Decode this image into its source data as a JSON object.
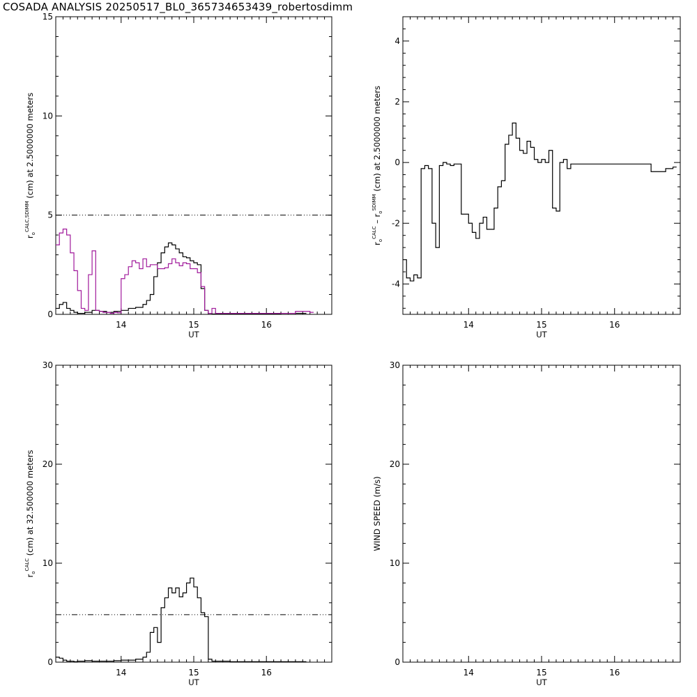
{
  "title": "COSADA ANALYSIS 20250517_BL0_365734653439_robertosdimm",
  "chart_data": [
    {
      "type": "line",
      "xlabel": "UT",
      "ylabel": {
        "base": "r",
        "sub": "o",
        "sup": "CALC,SDIMM",
        "rest": "(cm)  at  2.5000000 meters"
      },
      "xlim": [
        13.1,
        16.9
      ],
      "ylim": [
        0,
        15
      ],
      "xticks": [
        14,
        15,
        16
      ],
      "yticks": [
        0,
        5,
        10,
        15
      ],
      "ref_line": 5,
      "series": [
        {
          "color": "#000000",
          "style": "step",
          "x": [
            13.1,
            13.15,
            13.2,
            13.25,
            13.3,
            13.35,
            13.4,
            13.5,
            13.6,
            13.7,
            13.8,
            13.9,
            14.0,
            14.1,
            14.2,
            14.3,
            14.35,
            14.4,
            14.45,
            14.5,
            14.55,
            14.6,
            14.65,
            14.7,
            14.75,
            14.8,
            14.85,
            14.9,
            14.95,
            15.0,
            15.05,
            15.1,
            15.15,
            15.2,
            15.25,
            15.3,
            15.4,
            15.5,
            15.6,
            15.7,
            15.8,
            15.9,
            16.0,
            16.1,
            16.2,
            16.3,
            16.4,
            16.5
          ],
          "y": [
            0.3,
            0.5,
            0.6,
            0.3,
            0.2,
            0.1,
            0.05,
            0.1,
            0.2,
            0.15,
            0.1,
            0.15,
            0.2,
            0.3,
            0.35,
            0.5,
            0.7,
            1.0,
            1.9,
            2.6,
            3.1,
            3.4,
            3.6,
            3.5,
            3.3,
            3.1,
            2.9,
            2.85,
            2.7,
            2.6,
            2.5,
            1.3,
            0.2,
            0.05,
            0.02,
            0.02,
            0.02,
            0.02,
            0.02,
            0.02,
            0.02,
            0.02,
            0.02,
            0.03,
            0.05,
            0.05,
            0.05,
            0.05
          ]
        },
        {
          "color": "#a0199b",
          "style": "step",
          "x": [
            13.1,
            13.15,
            13.2,
            13.25,
            13.3,
            13.35,
            13.4,
            13.45,
            13.5,
            13.55,
            13.6,
            13.65,
            13.7,
            13.75,
            13.8,
            13.85,
            13.9,
            13.95,
            14.0,
            14.05,
            14.1,
            14.15,
            14.2,
            14.25,
            14.3,
            14.35,
            14.4,
            14.45,
            14.5,
            14.55,
            14.6,
            14.65,
            14.7,
            14.75,
            14.8,
            14.85,
            14.9,
            14.95,
            15.0,
            15.05,
            15.1,
            15.15,
            15.2,
            15.25,
            15.3,
            15.35,
            15.4,
            15.5,
            15.6,
            15.7,
            15.8,
            16.0,
            16.2,
            16.4,
            16.5,
            16.6
          ],
          "y": [
            3.5,
            4.1,
            4.3,
            4.0,
            3.1,
            2.2,
            1.2,
            0.3,
            0.2,
            2.0,
            3.2,
            0.2,
            0.15,
            0.1,
            0.1,
            0.05,
            0.1,
            0.08,
            1.8,
            2.0,
            2.4,
            2.7,
            2.6,
            2.3,
            2.8,
            2.4,
            2.5,
            2.5,
            2.3,
            2.3,
            2.35,
            2.55,
            2.8,
            2.6,
            2.45,
            2.6,
            2.55,
            2.3,
            2.3,
            2.1,
            1.4,
            0.2,
            0.05,
            0.3,
            0.05,
            0.05,
            0.05,
            0.05,
            0.05,
            0.05,
            0.05,
            0.05,
            0.05,
            0.15,
            0.15,
            0.1
          ]
        }
      ]
    },
    {
      "type": "line",
      "xlabel": "UT",
      "ylabel": {
        "base": "r",
        "sub": "o",
        "sup": "CALC",
        "mid": "  –  r",
        "sub2": "o",
        "sup2": "SDIMM",
        "rest": "(cm) at 2.5000000 meters"
      },
      "xlim": [
        13.1,
        16.9
      ],
      "ylim": [
        -5,
        4.8
      ],
      "xticks": [
        14,
        15,
        16
      ],
      "yticks": [
        -4,
        -2,
        0,
        2,
        4
      ],
      "series": [
        {
          "color": "#000000",
          "style": "step",
          "x": [
            13.1,
            13.15,
            13.2,
            13.25,
            13.3,
            13.35,
            13.4,
            13.45,
            13.5,
            13.55,
            13.6,
            13.65,
            13.7,
            13.75,
            13.8,
            13.9,
            14.0,
            14.05,
            14.1,
            14.15,
            14.2,
            14.25,
            14.3,
            14.35,
            14.4,
            14.45,
            14.5,
            14.55,
            14.6,
            14.65,
            14.7,
            14.75,
            14.8,
            14.85,
            14.9,
            14.95,
            15.0,
            15.05,
            15.1,
            15.15,
            15.2,
            15.25,
            15.3,
            15.35,
            15.4,
            15.5,
            15.6,
            15.7,
            15.8,
            15.9,
            16.0,
            16.1,
            16.2,
            16.3,
            16.4,
            16.5,
            16.6,
            16.7,
            16.8
          ],
          "y": [
            -3.2,
            -3.8,
            -3.9,
            -3.7,
            -3.8,
            -0.2,
            -0.1,
            -0.2,
            -2.0,
            -2.8,
            -0.1,
            0.0,
            -0.05,
            -0.1,
            -0.05,
            -1.7,
            -2.0,
            -2.3,
            -2.5,
            -2.0,
            -1.8,
            -2.2,
            -2.2,
            -1.5,
            -0.8,
            -0.6,
            0.6,
            0.9,
            1.3,
            0.8,
            0.4,
            0.3,
            0.7,
            0.5,
            0.1,
            0.0,
            0.1,
            0.0,
            0.4,
            -1.5,
            -1.6,
            0.0,
            0.1,
            -0.2,
            -0.05,
            -0.05,
            -0.05,
            -0.05,
            -0.05,
            -0.05,
            -0.05,
            -0.05,
            -0.05,
            -0.05,
            -0.05,
            -0.3,
            -0.3,
            -0.2,
            -0.15
          ]
        }
      ]
    },
    {
      "type": "line",
      "xlabel": "UT",
      "ylabel": {
        "base": "r",
        "sub": "o",
        "sup": "CALC",
        "rest": "(cm) at 32.500000 meters"
      },
      "xlim": [
        13.1,
        16.9
      ],
      "ylim": [
        0,
        30
      ],
      "xticks": [
        14,
        15,
        16
      ],
      "yticks": [
        0,
        10,
        20,
        30
      ],
      "ref_line": 4.8,
      "series": [
        {
          "color": "#000000",
          "style": "step",
          "x": [
            13.1,
            13.15,
            13.2,
            13.25,
            13.3,
            13.35,
            13.4,
            13.5,
            13.6,
            13.7,
            13.8,
            13.9,
            14.0,
            14.1,
            14.2,
            14.3,
            14.35,
            14.4,
            14.45,
            14.5,
            14.55,
            14.6,
            14.65,
            14.7,
            14.75,
            14.8,
            14.85,
            14.9,
            14.95,
            15.0,
            15.05,
            15.1,
            15.15,
            15.2,
            15.25,
            15.3,
            15.4,
            15.5,
            15.6,
            15.7,
            15.8,
            15.9,
            16.0,
            16.1,
            16.2,
            16.3,
            16.4,
            16.5
          ],
          "y": [
            0.5,
            0.4,
            0.2,
            0.1,
            0.1,
            0.05,
            0.1,
            0.15,
            0.1,
            0.1,
            0.1,
            0.15,
            0.2,
            0.2,
            0.3,
            0.5,
            1.0,
            3.0,
            3.5,
            2.0,
            5.5,
            6.5,
            7.5,
            7.0,
            7.5,
            6.6,
            7.0,
            8.0,
            8.5,
            7.6,
            6.5,
            5.0,
            4.6,
            0.3,
            0.1,
            0.1,
            0.1,
            0.05,
            0.05,
            0.05,
            0.05,
            0.05,
            0.05,
            0.05,
            0.05,
            0.05,
            0.05,
            0.05
          ]
        }
      ]
    },
    {
      "type": "line",
      "xlabel": "UT",
      "ylabel": {
        "base": "WIND SPEED (m/s)"
      },
      "xlim": [
        13.1,
        16.9
      ],
      "ylim": [
        0,
        30
      ],
      "xticks": [
        14,
        15,
        16
      ],
      "yticks": [
        0,
        10,
        20,
        30
      ],
      "series": []
    }
  ]
}
